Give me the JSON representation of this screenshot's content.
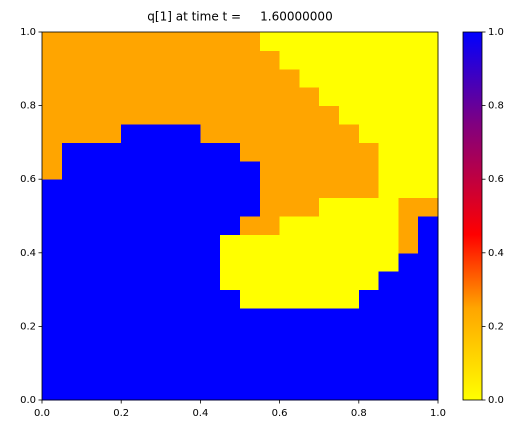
{
  "chart_data": {
    "type": "heatmap",
    "title": "q[1] at time t =     1.60000000",
    "xlim": [
      0,
      1
    ],
    "ylim": [
      0,
      1
    ],
    "clim": [
      0,
      1
    ],
    "xticks": [
      {
        "value": 0,
        "label": "0.0"
      },
      {
        "value": 0.2,
        "label": "0.2"
      },
      {
        "value": 0.4,
        "label": "0.4"
      },
      {
        "value": 0.6,
        "label": "0.6"
      },
      {
        "value": 0.8,
        "label": "0.8"
      },
      {
        "value": 1,
        "label": "1.0"
      }
    ],
    "yticks": [
      {
        "value": 0,
        "label": "0.0"
      },
      {
        "value": 0.2,
        "label": "0.2"
      },
      {
        "value": 0.4,
        "label": "0.4"
      },
      {
        "value": 0.6,
        "label": "0.6"
      },
      {
        "value": 0.8,
        "label": "0.8"
      },
      {
        "value": 1,
        "label": "1.0"
      }
    ],
    "cticks": [
      {
        "value": 0,
        "label": "0.0"
      },
      {
        "value": 0.2,
        "label": "0.2"
      },
      {
        "value": 0.4,
        "label": "0.4"
      },
      {
        "value": 0.6,
        "label": "0.6"
      },
      {
        "value": 0.8,
        "label": "0.8"
      },
      {
        "value": 1,
        "label": "1.0"
      }
    ],
    "colormap": [
      {
        "value": 0,
        "color": "#ffff00"
      },
      {
        "value": 0.25,
        "color": "#ffa500"
      },
      {
        "value": 0.45,
        "color": "#ff0000"
      },
      {
        "value": 0.75,
        "color": "#800080"
      },
      {
        "value": 1,
        "color": "#0000ff"
      }
    ],
    "z": [
      [
        1,
        1,
        1,
        1,
        1,
        1,
        1,
        1,
        1,
        1,
        1,
        1,
        1,
        1,
        1,
        1,
        1,
        1,
        1,
        1
      ],
      [
        1,
        1,
        1,
        1,
        1,
        1,
        1,
        1,
        1,
        1,
        1,
        1,
        1,
        1,
        1,
        1,
        1,
        1,
        1,
        1
      ],
      [
        1,
        1,
        1,
        1,
        1,
        1,
        1,
        1,
        1,
        1,
        1,
        1,
        1,
        1,
        1,
        1,
        1,
        1,
        1,
        1
      ],
      [
        1,
        1,
        1,
        1,
        1,
        1,
        1,
        1,
        1,
        1,
        1,
        1,
        1,
        1,
        1,
        1,
        1,
        1,
        1,
        1
      ],
      [
        1,
        1,
        1,
        1,
        1,
        1,
        1,
        1,
        1,
        1,
        1,
        1,
        1,
        1,
        1,
        1,
        1,
        1,
        1,
        1
      ],
      [
        1,
        1,
        1,
        1,
        1,
        1,
        1,
        1,
        1,
        1,
        0,
        0,
        0,
        0,
        0,
        0,
        1,
        1,
        1,
        1
      ],
      [
        1,
        1,
        1,
        1,
        1,
        1,
        1,
        1,
        1,
        0,
        0,
        0,
        0,
        0,
        0,
        0,
        0,
        1,
        1,
        1
      ],
      [
        1,
        1,
        1,
        1,
        1,
        1,
        1,
        1,
        1,
        0,
        0,
        0,
        0,
        0,
        0,
        0,
        0,
        0,
        1,
        1
      ],
      [
        1,
        1,
        1,
        1,
        1,
        1,
        1,
        1,
        1,
        0,
        0,
        0,
        0,
        0,
        0,
        0,
        0,
        0,
        0.25,
        1
      ],
      [
        1,
        1,
        1,
        1,
        1,
        1,
        1,
        1,
        1,
        1,
        0.25,
        0.25,
        0,
        0,
        0,
        0,
        0,
        0,
        0.25,
        1
      ],
      [
        1,
        1,
        1,
        1,
        1,
        1,
        1,
        1,
        1,
        1,
        1,
        0.25,
        0.25,
        0.25,
        0,
        0,
        0,
        0,
        0.25,
        0.25
      ],
      [
        1,
        1,
        1,
        1,
        1,
        1,
        1,
        1,
        1,
        1,
        1,
        0.25,
        0.25,
        0.25,
        0.25,
        0.25,
        0.25,
        0,
        0,
        0
      ],
      [
        0.25,
        1,
        1,
        1,
        1,
        1,
        1,
        1,
        1,
        1,
        1,
        0.25,
        0.25,
        0.25,
        0.25,
        0.25,
        0.25,
        0,
        0,
        0
      ],
      [
        0.25,
        1,
        1,
        1,
        1,
        1,
        1,
        1,
        1,
        1,
        0.25,
        0.25,
        0.25,
        0.25,
        0.25,
        0.25,
        0.25,
        0,
        0,
        0
      ],
      [
        0.25,
        0.25,
        0.25,
        0.25,
        1,
        1,
        1,
        1,
        0.25,
        0.25,
        0.25,
        0.25,
        0.25,
        0.25,
        0.25,
        0.25,
        0,
        0,
        0,
        0
      ],
      [
        0.25,
        0.25,
        0.25,
        0.25,
        0.25,
        0.25,
        0.25,
        0.25,
        0.25,
        0.25,
        0.25,
        0.25,
        0.25,
        0.25,
        0.25,
        0,
        0,
        0,
        0,
        0
      ],
      [
        0.25,
        0.25,
        0.25,
        0.25,
        0.25,
        0.25,
        0.25,
        0.25,
        0.25,
        0.25,
        0.25,
        0.25,
        0.25,
        0.25,
        0,
        0,
        0,
        0,
        0,
        0
      ],
      [
        0.25,
        0.25,
        0.25,
        0.25,
        0.25,
        0.25,
        0.25,
        0.25,
        0.25,
        0.25,
        0.25,
        0.25,
        0.25,
        0,
        0,
        0,
        0,
        0,
        0,
        0
      ],
      [
        0.25,
        0.25,
        0.25,
        0.25,
        0.25,
        0.25,
        0.25,
        0.25,
        0.25,
        0.25,
        0.25,
        0.25,
        0,
        0,
        0,
        0,
        0,
        0,
        0,
        0
      ],
      [
        0.25,
        0.25,
        0.25,
        0.25,
        0.25,
        0.25,
        0.25,
        0.25,
        0.25,
        0.25,
        0.25,
        0,
        0,
        0,
        0,
        0,
        0,
        0,
        0,
        0
      ]
    ]
  }
}
